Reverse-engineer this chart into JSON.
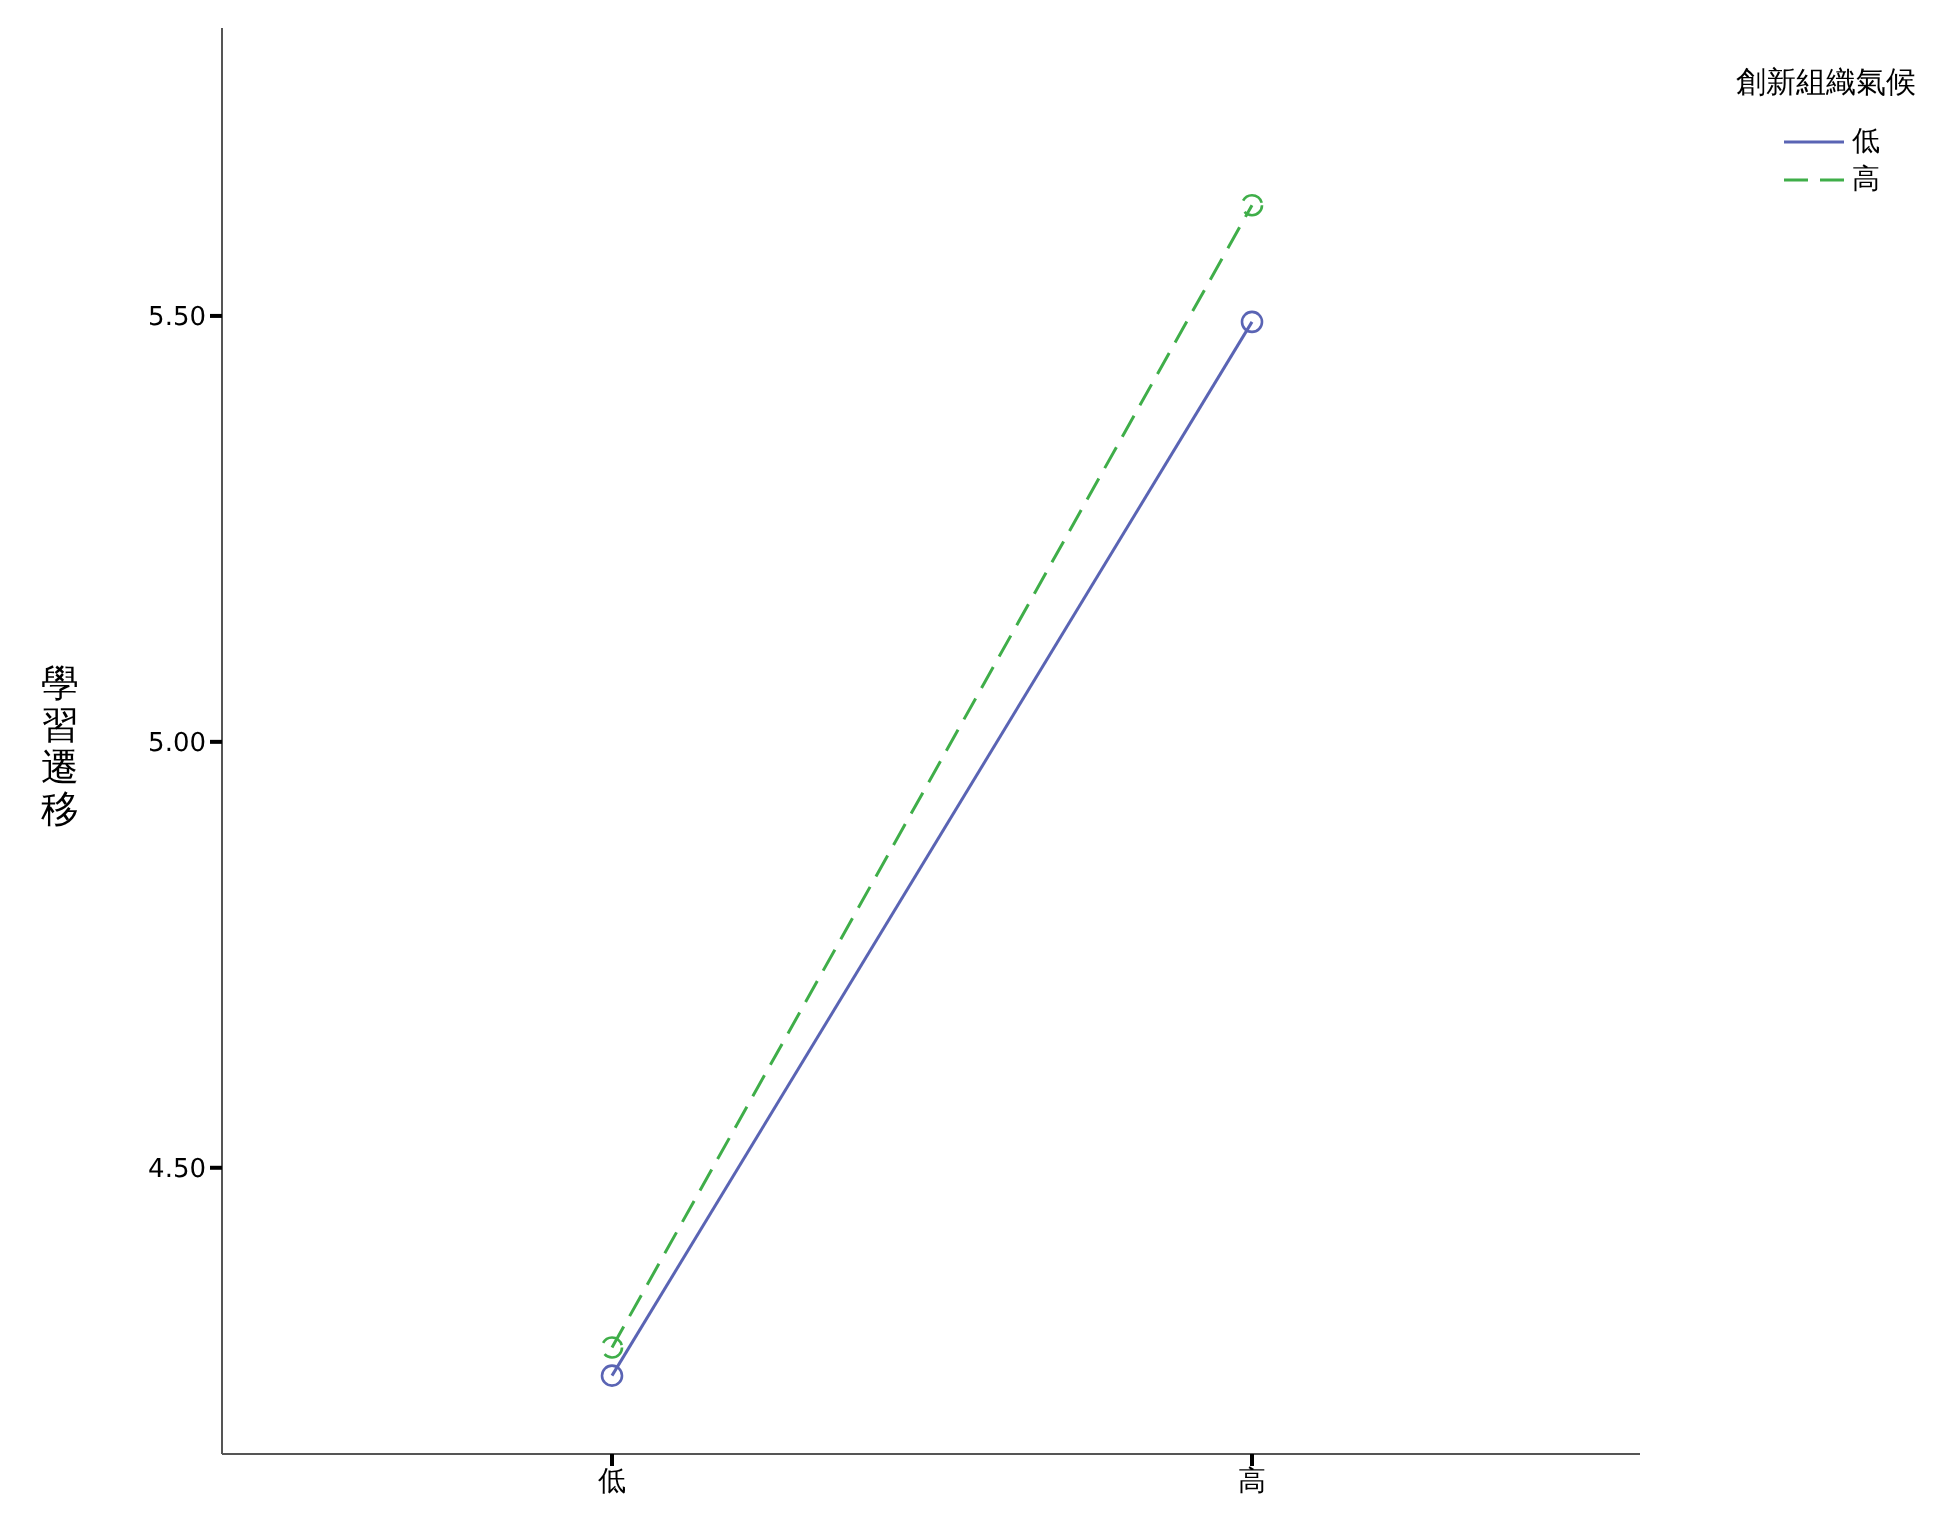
{
  "chart_data": {
    "type": "line",
    "ylabel": "學習遷移",
    "legend_title": "創新組織氣候",
    "categories": [
      "低",
      "高"
    ],
    "series": [
      {
        "name": "低",
        "color": "#5a64b4",
        "values": [
          4.256,
          5.493
        ],
        "line_style": "solid"
      },
      {
        "name": "高",
        "color": "#3fae49",
        "values": [
          4.289,
          5.63
        ],
        "line_style": "dashed"
      }
    ],
    "ylim": [
      4.164,
      5.838
    ],
    "yticks": [
      {
        "value": 4.5,
        "label": "4.50"
      },
      {
        "value": 5,
        "label": "5.00"
      },
      {
        "value": 5.5,
        "label": "5.50"
      }
    ],
    "grid": false,
    "legend": "top right",
    "marker": "circle"
  }
}
